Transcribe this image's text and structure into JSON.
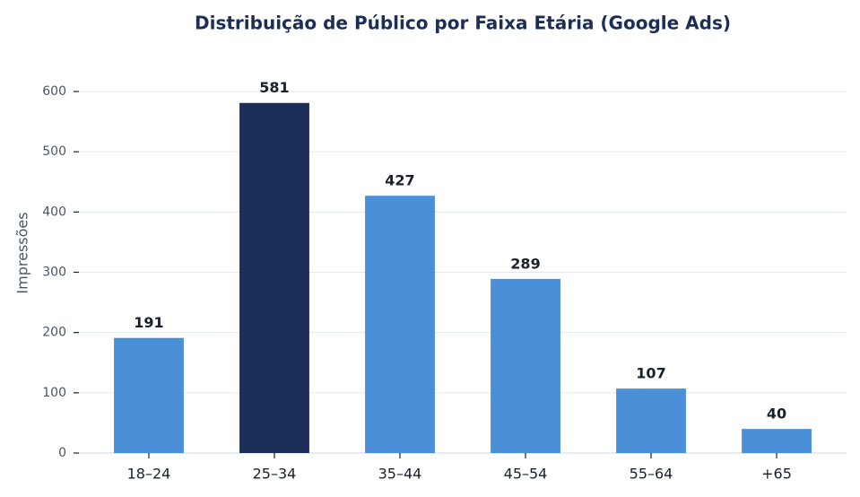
{
  "chart_data": {
    "type": "bar",
    "title": "Distribuição de Público por Faixa Etária (Google Ads)",
    "y_label": "Impressões",
    "categories": [
      "18–24",
      "25–34",
      "35–44",
      "45–54",
      "55–64",
      "+65"
    ],
    "values": [
      191,
      581,
      427,
      289,
      107,
      40
    ],
    "colors": [
      "#4a90d9",
      "#1c2f5a",
      "#4a90d9",
      "#4a90d9",
      "#4a90d9",
      "#4a90d9"
    ],
    "ylim": [
      0,
      650
    ],
    "yticks": [
      0,
      100,
      200,
      300,
      400,
      500,
      600
    ],
    "grid": true
  }
}
